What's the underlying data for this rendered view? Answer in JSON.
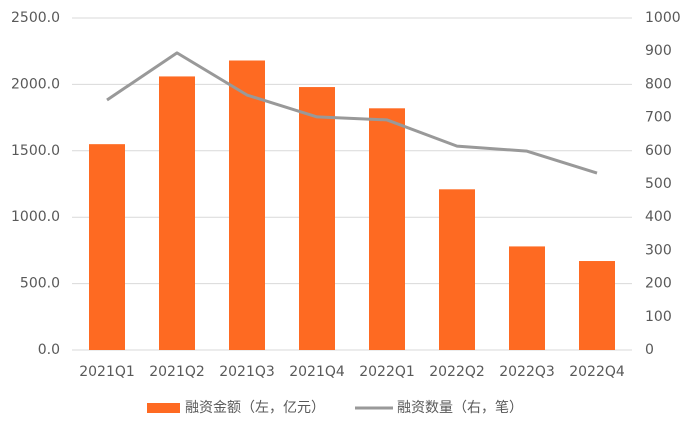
{
  "chart_data": {
    "type": "bar",
    "categories": [
      "2021Q1",
      "2021Q2",
      "2021Q3",
      "2021Q4",
      "2022Q1",
      "2022Q2",
      "2022Q3",
      "2022Q4"
    ],
    "series": [
      {
        "name": "融资金额（左，亿元）",
        "type": "bar",
        "color": "#fe6a22",
        "values": [
          1550,
          2060,
          2180,
          1980,
          1820,
          1210,
          780,
          670
        ]
      },
      {
        "name": "融资数量（右，笔）",
        "type": "line",
        "axis": "y2",
        "color": "#999999",
        "values": [
          753,
          895,
          768,
          702,
          693,
          614,
          599,
          533
        ]
      }
    ],
    "ylim": [
      0,
      2500
    ],
    "yticks": [
      {
        "value": 0,
        "label": "0.0"
      },
      {
        "value": 500,
        "label": "500.0"
      },
      {
        "value": 1000,
        "label": "1000.0"
      },
      {
        "value": 1500,
        "label": "1500.0"
      },
      {
        "value": 2000,
        "label": "2000.0"
      },
      {
        "value": 2500,
        "label": "2500.0"
      }
    ],
    "y2lim": [
      0,
      1000
    ],
    "y2ticks": [
      0,
      100,
      200,
      300,
      400,
      500,
      600,
      700,
      800,
      900,
      1000
    ],
    "grid": true,
    "legend": "bottom"
  }
}
